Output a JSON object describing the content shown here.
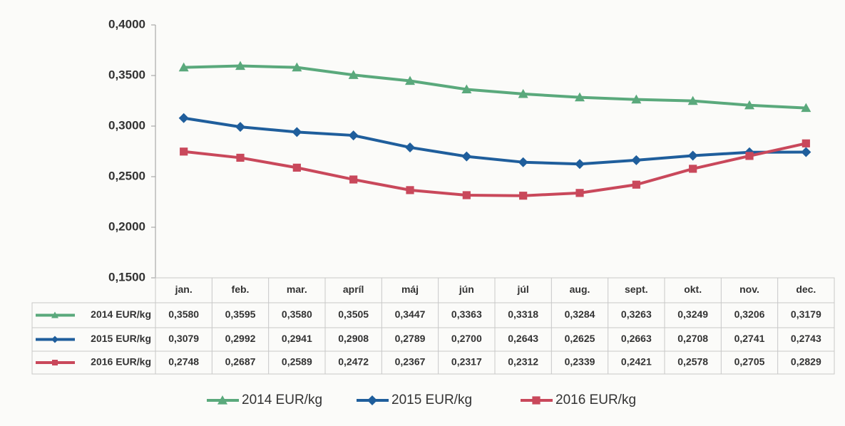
{
  "chart_data": {
    "type": "line",
    "categories": [
      "jan.",
      "feb.",
      "mar.",
      "apríl",
      "máj",
      "jún",
      "júl",
      "aug.",
      "sept.",
      "okt.",
      "nov.",
      "dec."
    ],
    "series": [
      {
        "name": "2014 EUR/kg",
        "color": "#5aa97c",
        "marker": "triangle",
        "values": [
          0.358,
          0.3595,
          0.358,
          0.3505,
          0.3447,
          0.3363,
          0.3318,
          0.3284,
          0.3263,
          0.3249,
          0.3206,
          0.3179
        ],
        "value_labels": [
          "0,3580",
          "0,3595",
          "0,3580",
          "0,3505",
          "0,3447",
          "0,3363",
          "0,3318",
          "0,3284",
          "0,3263",
          "0,3249",
          "0,3206",
          "0,3179"
        ]
      },
      {
        "name": "2015 EUR/kg",
        "color": "#1f5e9c",
        "marker": "diamond",
        "values": [
          0.3079,
          0.2992,
          0.2941,
          0.2908,
          0.2789,
          0.27,
          0.2643,
          0.2625,
          0.2663,
          0.2708,
          0.2741,
          0.2743
        ],
        "value_labels": [
          "0,3079",
          "0,2992",
          "0,2941",
          "0,2908",
          "0,2789",
          "0,2700",
          "0,2643",
          "0,2625",
          "0,2663",
          "0,2708",
          "0,2741",
          "0,2743"
        ]
      },
      {
        "name": "2016 EUR/kg",
        "color": "#c9485b",
        "marker": "square",
        "values": [
          0.2748,
          0.2687,
          0.2589,
          0.2472,
          0.2367,
          0.2317,
          0.2312,
          0.2339,
          0.2421,
          0.2578,
          0.2705,
          0.2829
        ],
        "value_labels": [
          "0,2748",
          "0,2687",
          "0,2589",
          "0,2472",
          "0,2367",
          "0,2317",
          "0,2312",
          "0,2339",
          "0,2421",
          "0,2578",
          "0,2705",
          "0,2829"
        ]
      }
    ],
    "ylim": [
      0.15,
      0.4
    ],
    "yticks": [
      {
        "value": 0.15,
        "label": "0,1500"
      },
      {
        "value": 0.2,
        "label": "0,2000"
      },
      {
        "value": 0.25,
        "label": "0,2500"
      },
      {
        "value": 0.3,
        "label": "0,3000"
      },
      {
        "value": 0.35,
        "label": "0,3500"
      },
      {
        "value": 0.4,
        "label": "0,4000"
      }
    ],
    "grid": false,
    "legend": "bottom",
    "data_table": true
  }
}
